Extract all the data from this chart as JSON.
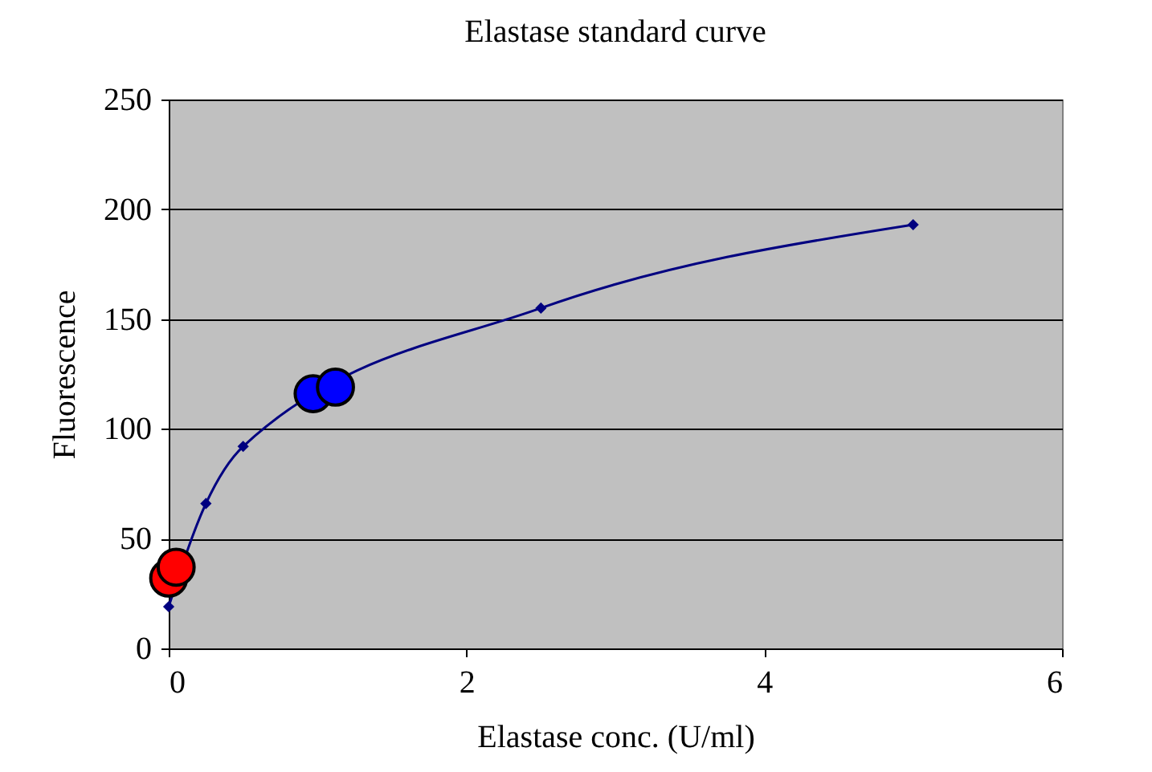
{
  "chart_data": {
    "type": "line",
    "title": "Elastase standard curve",
    "xlabel": "Elastase conc. (U/ml)",
    "ylabel": "Fluorescence",
    "xlim": [
      0,
      6
    ],
    "xticks": [
      0,
      2,
      4,
      6
    ],
    "ylim": [
      0,
      250
    ],
    "yticks": [
      0,
      50,
      100,
      150,
      200,
      250
    ],
    "grid": "y",
    "series": [
      {
        "type": "line",
        "color": "#000080",
        "marker": "diamond",
        "x": [
          0,
          0.25,
          0.5,
          2.5,
          5
        ],
        "values": [
          19,
          66,
          92,
          155,
          193
        ]
      },
      {
        "type": "scatter",
        "color": "#ff0000",
        "marker": "circle",
        "x": [
          0,
          0.05
        ],
        "values": [
          32,
          37
        ]
      },
      {
        "type": "scatter",
        "color": "#0000ff",
        "marker": "circle",
        "x": [
          0.97,
          1.12
        ],
        "values": [
          116,
          119
        ]
      }
    ]
  }
}
